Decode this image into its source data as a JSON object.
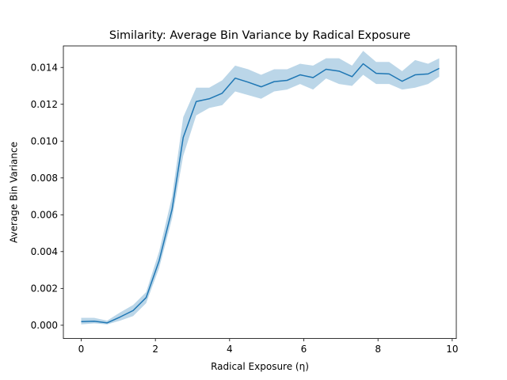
{
  "chart_data": {
    "type": "line",
    "title": "Similarity: Average Bin Variance by Radical Exposure",
    "xlabel": "Radical Exposure (η)",
    "ylabel": "Average Bin Variance",
    "xlim": [
      -0.48,
      10.11
    ],
    "ylim": [
      -0.00072,
      0.01517
    ],
    "x_ticks": [
      0,
      2,
      4,
      6,
      8,
      10
    ],
    "x_tick_labels": [
      "0",
      "2",
      "4",
      "6",
      "8",
      "10"
    ],
    "y_ticks": [
      0.0,
      0.002,
      0.004,
      0.006,
      0.008,
      0.01,
      0.012,
      0.014
    ],
    "y_tick_labels": [
      "0.000",
      "0.002",
      "0.004",
      "0.006",
      "0.008",
      "0.010",
      "0.012",
      "0.014"
    ],
    "grid": false,
    "legend": false,
    "colors": {
      "line": "#1f77b4",
      "band": "#1f77b4",
      "band_opacity": 0.3
    },
    "series": [
      {
        "x": [
          0.0,
          0.35,
          0.7,
          1.05,
          1.4,
          1.75,
          2.1,
          2.45,
          2.75,
          3.1,
          3.45,
          3.8,
          4.15,
          4.5,
          4.85,
          5.2,
          5.55,
          5.9,
          6.25,
          6.6,
          6.95,
          7.3,
          7.6,
          7.95,
          8.3,
          8.65,
          9.0,
          9.35,
          9.65
        ],
        "y": [
          0.0002,
          0.00022,
          0.00013,
          0.00045,
          0.0008,
          0.0015,
          0.0035,
          0.0063,
          0.0102,
          0.01215,
          0.0123,
          0.0126,
          0.01342,
          0.0132,
          0.01295,
          0.01323,
          0.0133,
          0.0136,
          0.01345,
          0.0139,
          0.0138,
          0.0135,
          0.0142,
          0.01368,
          0.01365,
          0.01325,
          0.0136,
          0.01365,
          0.01395
        ],
        "lower": [
          5e-05,
          0.0001,
          5e-05,
          0.00025,
          0.0005,
          0.0012,
          0.0031,
          0.0058,
          0.0092,
          0.0114,
          0.0118,
          0.01195,
          0.0127,
          0.0125,
          0.0123,
          0.0127,
          0.0128,
          0.0131,
          0.0128,
          0.0134,
          0.0131,
          0.013,
          0.0136,
          0.0131,
          0.0131,
          0.0128,
          0.0129,
          0.0131,
          0.0135
        ],
        "upper": [
          0.0004,
          0.0004,
          0.00025,
          0.0007,
          0.0011,
          0.0018,
          0.004,
          0.007,
          0.0113,
          0.0129,
          0.0129,
          0.0133,
          0.0141,
          0.0139,
          0.0136,
          0.0139,
          0.0139,
          0.0142,
          0.0141,
          0.0145,
          0.0145,
          0.0141,
          0.0149,
          0.0143,
          0.0143,
          0.0138,
          0.0144,
          0.0142,
          0.0145
        ]
      }
    ]
  }
}
